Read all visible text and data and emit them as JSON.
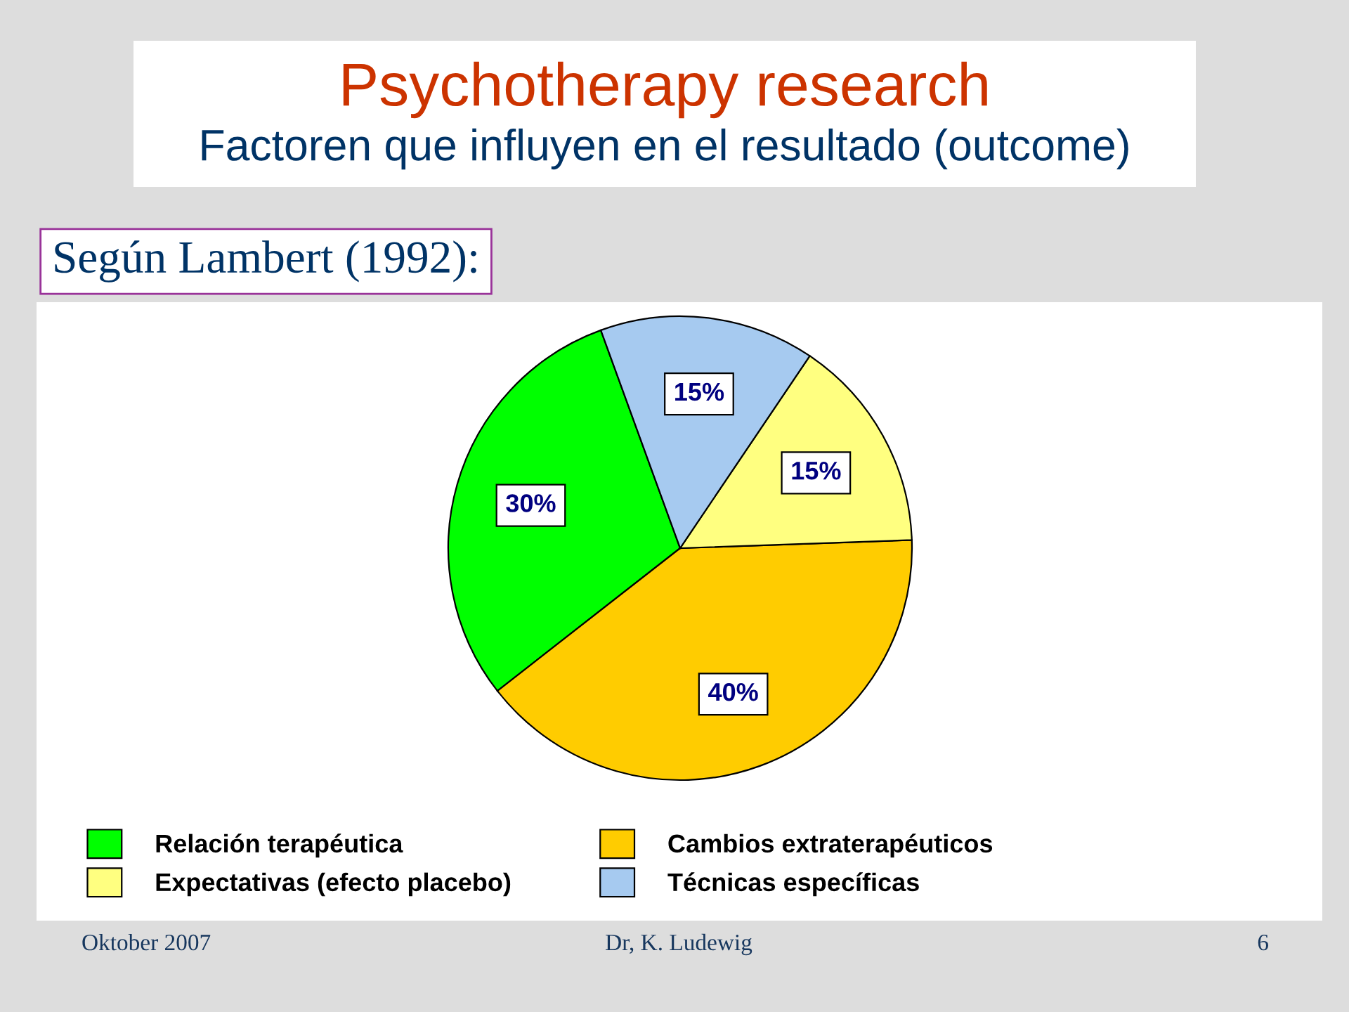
{
  "chart_data": {
    "type": "pie",
    "title": "Psychotherapy research",
    "subtitle": "Factoren que influyen en el resultado (outcome)",
    "categories": [
      "Relación terapéutica",
      "Cambios extraterapéuticos",
      "Expectativas (efecto placebo)",
      "Técnicas específicas"
    ],
    "values": [
      30,
      40,
      15,
      15
    ],
    "colors": [
      "#00ff00",
      "#ffcc00",
      "#ffff80",
      "#a6caf0"
    ],
    "value_labels": [
      "30%",
      "40%",
      "15%",
      "15%"
    ],
    "legend": "bottom",
    "annotations": [
      "Según Lambert (1992):",
      "Oktober 2007",
      "Dr, K. Ludewig",
      "6"
    ]
  }
}
